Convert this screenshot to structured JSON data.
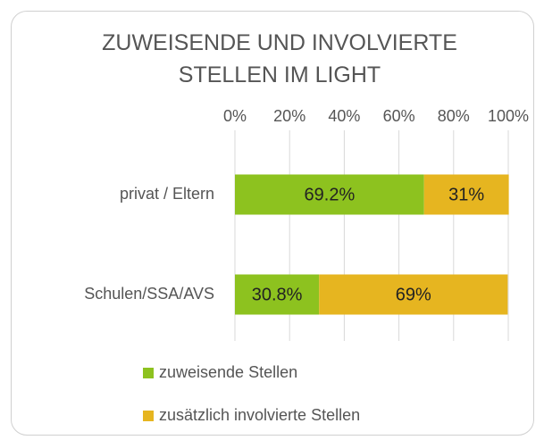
{
  "chart_data": {
    "type": "stacked_bar_horizontal",
    "title": "ZUWEISENDE UND INVOLVIERTE STELLEN IM LIGHT",
    "categories": [
      "privat / Eltern",
      "Schulen/SSA/AVS"
    ],
    "series": [
      {
        "name": "zuweisende Stellen",
        "color": "#8dc21f",
        "values": [
          69.2,
          30.8
        ],
        "value_labels": [
          "69.2%",
          "30.8%"
        ]
      },
      {
        "name": "zusätzlich involvierte Stellen",
        "color": "#e6b520",
        "values": [
          31,
          69
        ],
        "value_labels": [
          "31%",
          "69%"
        ]
      }
    ],
    "xlim": [
      0,
      100
    ],
    "xticks": [
      {
        "value": 0,
        "label": "0%"
      },
      {
        "value": 20,
        "label": "20%"
      },
      {
        "value": 40,
        "label": "40%"
      },
      {
        "value": 60,
        "label": "60%"
      },
      {
        "value": 80,
        "label": "80%"
      },
      {
        "value": 100,
        "label": "100%"
      }
    ],
    "grid": true,
    "legend": "bottom"
  }
}
